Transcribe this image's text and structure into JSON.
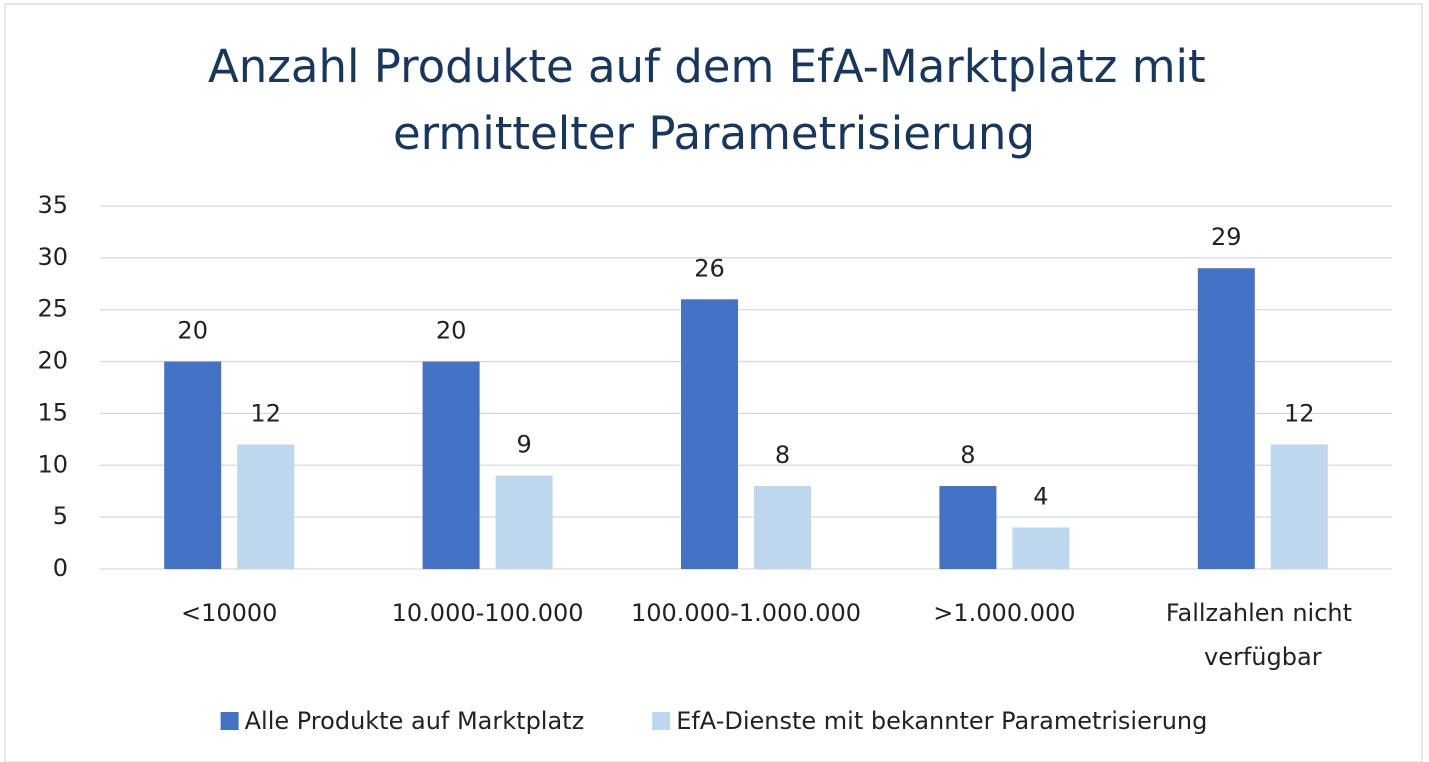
{
  "chart_data": {
    "type": "bar",
    "title": "Anzahl Produkte auf dem EfA-Marktplatz mit ermittelter Parametrisierung",
    "categories": [
      "<10000",
      "10.000-100.000",
      "100.000-1.000.000",
      ">1.000.000",
      "Fallzahlen nicht verfügbar"
    ],
    "series": [
      {
        "name": "Alle Produkte auf Marktplatz",
        "color": "#4472c4",
        "values": [
          20,
          20,
          26,
          8,
          29
        ]
      },
      {
        "name": "EfA-Dienste mit bekannter Parametrisierung",
        "color": "#bdd7ee",
        "values": [
          12,
          9,
          8,
          4,
          12
        ]
      }
    ],
    "ylim": [
      0,
      35
    ],
    "yticks": [
      0,
      5,
      10,
      15,
      20,
      25,
      30,
      35
    ],
    "grid": true,
    "legend": "bottom",
    "data_labels": true
  }
}
